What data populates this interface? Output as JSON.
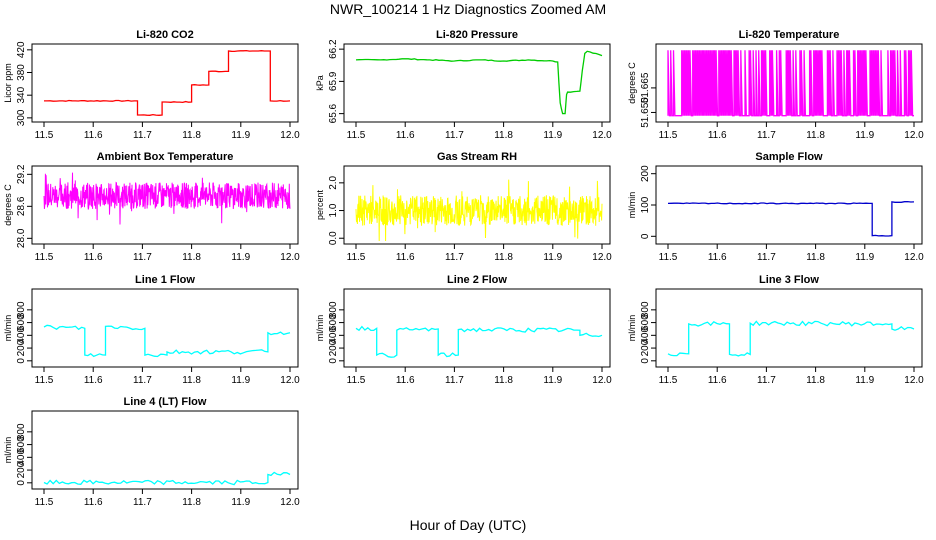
{
  "title": "NWR_100214  1 Hz Diagnostics Zoomed AM",
  "xlabel": "Hour of Day (UTC)",
  "chart_data": [
    {
      "type": "line",
      "title": "Li-820 CO2",
      "ylabel": "Licor ppm",
      "color": "#ff0000",
      "xlim": [
        11.5,
        12.0
      ],
      "xticks": [
        "11.5",
        "11.6",
        "11.7",
        "11.8",
        "11.9",
        "12.0"
      ],
      "ylim": [
        298,
        425
      ],
      "yticks": [
        300,
        340,
        380,
        420
      ],
      "series": [
        {
          "x": [
            11.5,
            11.69,
            11.69,
            11.74,
            11.74,
            11.8,
            11.8,
            11.835,
            11.835,
            11.875,
            11.875,
            11.96,
            11.96,
            12.0
          ],
          "y": [
            330,
            330,
            305,
            305,
            328,
            328,
            358,
            358,
            382,
            382,
            418,
            418,
            330,
            330
          ]
        }
      ]
    },
    {
      "type": "line",
      "title": "Li-820 Pressure",
      "ylabel": "kPa",
      "color": "#00cc00",
      "xlim": [
        11.5,
        12.0
      ],
      "xticks": [
        "11.5",
        "11.6",
        "11.7",
        "11.8",
        "11.9",
        "12.0"
      ],
      "ylim": [
        65.55,
        66.22
      ],
      "yticks": [
        "65.6",
        "65.9",
        "66.2"
      ],
      "series": [
        {
          "x": [
            11.5,
            11.55,
            11.6,
            11.65,
            11.7,
            11.75,
            11.8,
            11.85,
            11.9,
            11.91,
            11.915,
            11.92,
            11.925,
            11.928,
            11.93,
            11.955,
            11.96,
            11.965,
            11.97,
            12.0
          ],
          "y": [
            66.1,
            66.1,
            66.11,
            66.1,
            66.09,
            66.1,
            66.09,
            66.1,
            66.09,
            66.08,
            65.7,
            65.6,
            65.6,
            65.78,
            65.8,
            65.81,
            66.0,
            66.16,
            66.18,
            66.14
          ]
        }
      ]
    },
    {
      "type": "line",
      "title": "Li-820 Temperature",
      "ylabel": "degrees C",
      "color": "#ff00ff",
      "xlim": [
        11.5,
        12.0
      ],
      "xticks": [
        "11.5",
        "11.6",
        "11.7",
        "11.8",
        "11.9",
        "12.0"
      ],
      "ylim": [
        51.646,
        51.69
      ],
      "yticks": [
        "51.650",
        "51.665"
      ],
      "series": [
        {
          "x": [
            11.5,
            12.0
          ],
          "y": [
            51.648,
            51.688
          ]
        }
      ]
    },
    {
      "type": "line",
      "title": "Ambient Box Temperature",
      "ylabel": "degrees C",
      "color": "#ff00ff",
      "xlim": [
        11.5,
        12.0
      ],
      "xticks": [
        "11.5",
        "11.6",
        "11.7",
        "11.8",
        "11.9",
        "12.0"
      ],
      "ylim": [
        27.95,
        29.3
      ],
      "yticks": [
        "28.0",
        "28.6",
        "29.2"
      ],
      "series": [
        {
          "x": [
            11.5,
            12.0
          ],
          "y": [
            28.8,
            28.8
          ]
        }
      ]
    },
    {
      "type": "line",
      "title": "Gas Stream RH",
      "ylabel": "percent",
      "color": "#ffff00",
      "xlim": [
        11.5,
        12.0
      ],
      "xticks": [
        "11.5",
        "11.6",
        "11.7",
        "11.8",
        "11.9",
        "12.0"
      ],
      "ylim": [
        -0.1,
        2.5
      ],
      "yticks": [
        "0.0",
        "1.0",
        "2.0"
      ],
      "series": [
        {
          "x": [
            11.5,
            12.0
          ],
          "y": [
            1.0,
            1.0
          ]
        }
      ]
    },
    {
      "type": "line",
      "title": "Sample Flow",
      "ylabel": "ml/min",
      "color": "#0000cc",
      "xlim": [
        11.5,
        12.0
      ],
      "xticks": [
        "11.5",
        "11.6",
        "11.7",
        "11.8",
        "11.9",
        "12.0"
      ],
      "ylim": [
        -15,
        215
      ],
      "yticks": [
        0,
        100,
        200
      ],
      "series": [
        {
          "x": [
            11.5,
            11.915,
            11.915,
            11.955,
            11.955,
            12.0
          ],
          "y": [
            105,
            105,
            2,
            2,
            110,
            110
          ]
        }
      ]
    },
    {
      "type": "line",
      "title": "Line 1 Flow",
      "ylabel": "ml/min",
      "color": "#00ffff",
      "xlim": [
        11.5,
        12.0
      ],
      "xticks": [
        "11.5",
        "11.6",
        "11.7",
        "11.8",
        "11.9",
        "12.0"
      ],
      "ylim": [
        -50,
        1080
      ],
      "yticks": [
        0,
        200,
        400,
        600,
        800
      ],
      "series": [
        {
          "x": [
            11.5,
            11.583,
            11.583,
            11.625,
            11.625,
            11.705,
            11.705,
            11.75,
            11.75,
            11.955,
            11.955,
            12.0
          ],
          "y": [
            530,
            510,
            90,
            90,
            540,
            510,
            90,
            90,
            140,
            140,
            440,
            440
          ]
        }
      ]
    },
    {
      "type": "line",
      "title": "Line 2 Flow",
      "ylabel": "ml/min",
      "color": "#00ffff",
      "xlim": [
        11.5,
        12.0
      ],
      "xticks": [
        "11.5",
        "11.6",
        "11.7",
        "11.8",
        "11.9",
        "12.0"
      ],
      "ylim": [
        -50,
        1080
      ],
      "yticks": [
        0,
        200,
        400,
        600,
        800
      ],
      "series": [
        {
          "x": [
            11.5,
            11.542,
            11.542,
            11.583,
            11.583,
            11.667,
            11.667,
            11.708,
            11.708,
            11.955,
            11.955,
            12.0
          ],
          "y": [
            510,
            510,
            90,
            90,
            480,
            500,
            90,
            90,
            490,
            480,
            400,
            400
          ]
        }
      ]
    },
    {
      "type": "line",
      "title": "Line 3 Flow",
      "ylabel": "ml/min",
      "color": "#00ffff",
      "xlim": [
        11.5,
        12.0
      ],
      "xticks": [
        "11.5",
        "11.6",
        "11.7",
        "11.8",
        "11.9",
        "12.0"
      ],
      "ylim": [
        -50,
        1080
      ],
      "yticks": [
        0,
        200,
        400,
        600,
        800
      ],
      "series": [
        {
          "x": [
            11.5,
            11.542,
            11.542,
            11.625,
            11.625,
            11.667,
            11.667,
            11.955,
            11.955,
            12.0
          ],
          "y": [
            110,
            110,
            580,
            580,
            100,
            100,
            590,
            580,
            500,
            500
          ]
        }
      ]
    },
    {
      "type": "line",
      "title": "Line 4 (LT) Flow",
      "ylabel": "ml/min",
      "color": "#00ffff",
      "xlim": [
        11.5,
        12.0
      ],
      "xticks": [
        "11.5",
        "11.6",
        "11.7",
        "11.8",
        "11.9",
        "12.0"
      ],
      "ylim": [
        -50,
        1080
      ],
      "yticks": [
        0,
        200,
        400,
        600,
        800
      ],
      "series": [
        {
          "x": [
            11.5,
            11.955,
            11.955,
            12.0
          ],
          "y": [
            5,
            5,
            130,
            130
          ]
        }
      ]
    }
  ]
}
